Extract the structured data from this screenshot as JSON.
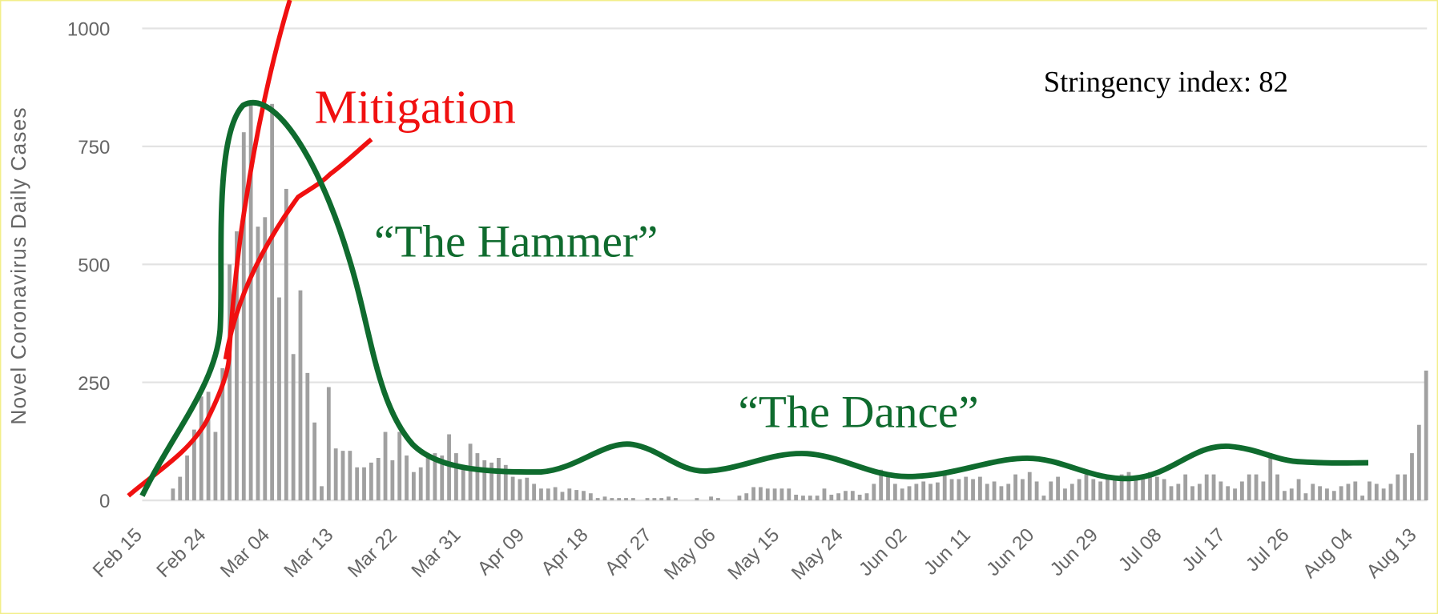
{
  "chart_data": {
    "type": "bar",
    "y_label": "Novel Coronavirus Daily Cases",
    "annotations": {
      "mitigation": "Mitigation",
      "hammer": "“The Hammer”",
      "dance": "“The Dance”",
      "stringency": "Stringency index: 82"
    },
    "color": "#a0a0a0",
    "ylim": [
      0,
      1000
    ],
    "yticks": [
      0,
      250,
      500,
      750,
      1000
    ],
    "grid": true,
    "categories": [
      "Feb 15",
      null,
      null,
      null,
      null,
      null,
      null,
      null,
      null,
      "Feb 24",
      null,
      null,
      null,
      null,
      null,
      null,
      null,
      null,
      "Mar 04",
      null,
      null,
      null,
      null,
      null,
      null,
      null,
      null,
      "Mar 13",
      null,
      null,
      null,
      null,
      null,
      null,
      null,
      null,
      "Mar 22",
      null,
      null,
      null,
      null,
      null,
      null,
      null,
      null,
      "Mar 31",
      null,
      null,
      null,
      null,
      null,
      null,
      null,
      null,
      "Apr 09",
      null,
      null,
      null,
      null,
      null,
      null,
      null,
      null,
      "Apr 18",
      null,
      null,
      null,
      null,
      null,
      null,
      null,
      null,
      "Apr 27",
      null,
      null,
      null,
      null,
      null,
      null,
      null,
      null,
      "May 06",
      null,
      null,
      null,
      null,
      null,
      null,
      null,
      null,
      "May 15",
      null,
      null,
      null,
      null,
      null,
      null,
      null,
      null,
      "May 24",
      null,
      null,
      null,
      null,
      null,
      null,
      null,
      null,
      "Jun 02",
      null,
      null,
      null,
      null,
      null,
      null,
      null,
      null,
      "Jun 11",
      null,
      null,
      null,
      null,
      null,
      null,
      null,
      null,
      "Jun 20",
      null,
      null,
      null,
      null,
      null,
      null,
      null,
      null,
      "Jun 29",
      null,
      null,
      null,
      null,
      null,
      null,
      null,
      null,
      "Jul 08",
      null,
      null,
      null,
      null,
      null,
      null,
      null,
      null,
      "Jul 17",
      null,
      null,
      null,
      null,
      null,
      null,
      null,
      null,
      "Jul 26",
      null,
      null,
      null,
      null,
      null,
      null,
      null,
      null,
      "Aug 04",
      null,
      null,
      null,
      null,
      null,
      null,
      null,
      null,
      "Aug 13",
      null,
      null
    ],
    "values": [
      0,
      0,
      0,
      0,
      0,
      25,
      50,
      95,
      150,
      220,
      230,
      145,
      280,
      500,
      570,
      780,
      840,
      580,
      600,
      840,
      430,
      660,
      310,
      445,
      270,
      165,
      30,
      240,
      110,
      105,
      105,
      70,
      70,
      80,
      90,
      145,
      85,
      145,
      95,
      60,
      70,
      90,
      100,
      95,
      140,
      100,
      75,
      120,
      100,
      85,
      80,
      90,
      75,
      50,
      45,
      48,
      35,
      25,
      25,
      28,
      18,
      25,
      22,
      20,
      15,
      5,
      8,
      5,
      5,
      5,
      5,
      0,
      5,
      5,
      5,
      8,
      5,
      0,
      0,
      5,
      0,
      8,
      5,
      0,
      0,
      10,
      15,
      28,
      28,
      25,
      25,
      25,
      25,
      12,
      10,
      10,
      10,
      25,
      12,
      15,
      20,
      20,
      12,
      15,
      35,
      65,
      55,
      35,
      25,
      30,
      35,
      40,
      35,
      38,
      55,
      45,
      45,
      50,
      45,
      50,
      35,
      40,
      30,
      35,
      55,
      45,
      60,
      40,
      10,
      40,
      50,
      25,
      35,
      45,
      55,
      45,
      40,
      50,
      50,
      55,
      60,
      50,
      45,
      60,
      50,
      45,
      30,
      35,
      55,
      30,
      35,
      55,
      55,
      40,
      30,
      25,
      40,
      55,
      55,
      40,
      100,
      55,
      20,
      25,
      45,
      15,
      35,
      30,
      25,
      20,
      30,
      35,
      40,
      10,
      40,
      35,
      25,
      35,
      55,
      55,
      100,
      160,
      275
    ]
  }
}
